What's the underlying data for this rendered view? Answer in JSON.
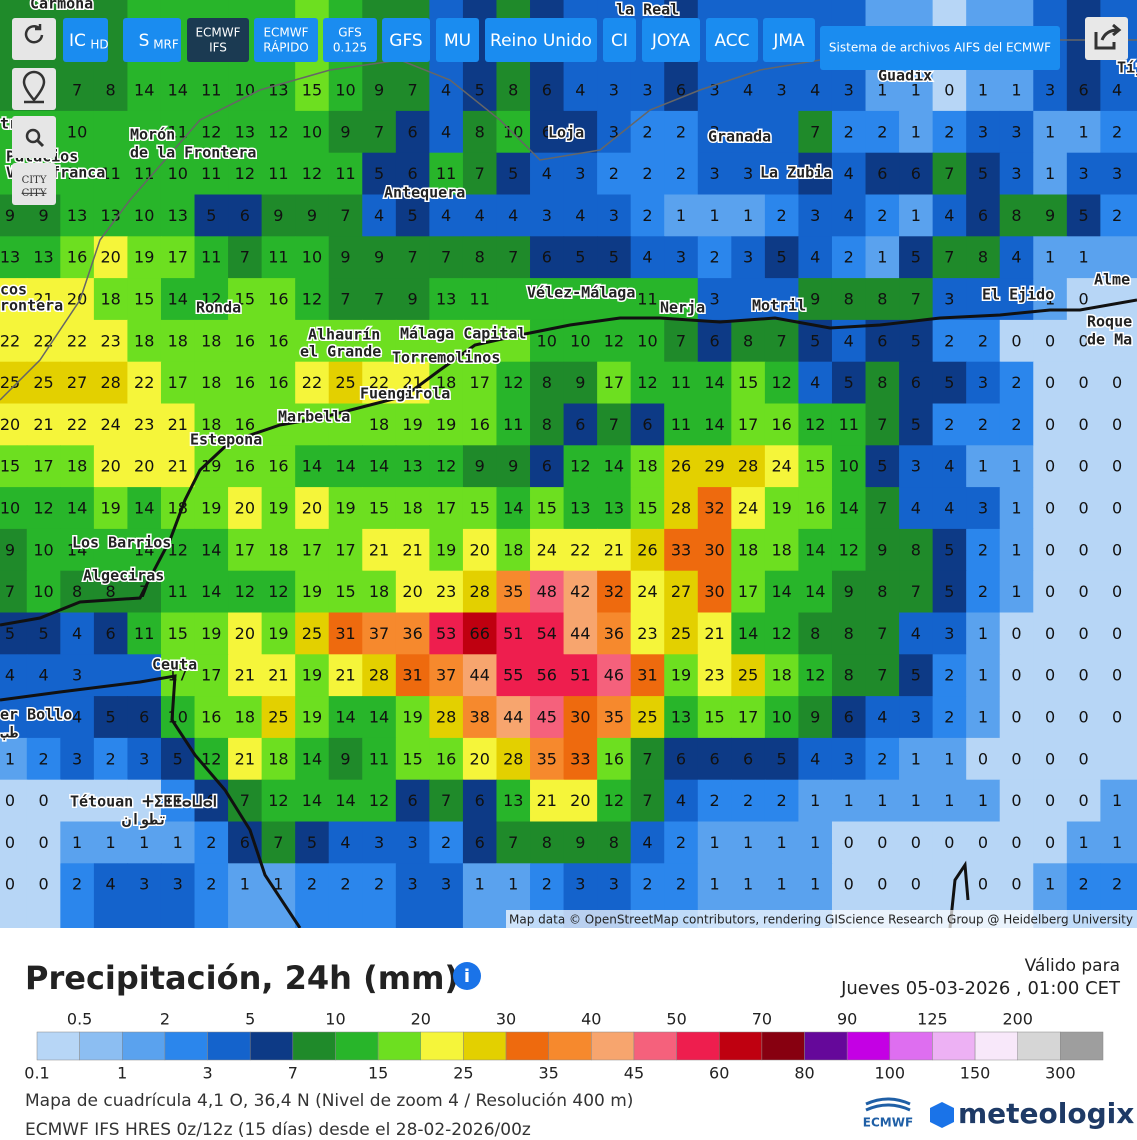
{
  "toolbar": {
    "buttons": [
      {
        "text": "IC",
        "small": "HD"
      },
      {
        "text": "S",
        "small": "MRF"
      },
      {
        "line1": "ECMWF",
        "line2": "IFS"
      },
      {
        "line1": "ECMWF",
        "line2": "RÁPIDO"
      },
      {
        "line1": "GFS",
        "line2": "0.125"
      },
      {
        "text": "GFS"
      },
      {
        "text": "MU"
      },
      {
        "text": "Reino Unido"
      },
      {
        "text": "CI"
      },
      {
        "text": "JOYA"
      },
      {
        "text": "ACC"
      },
      {
        "text": "JMA"
      }
    ],
    "archive": "Sistema de archivos AIFS del ECMWF",
    "city_toggle": {
      "line1": "CITY",
      "line2": "CITY"
    }
  },
  "map": {
    "places": [
      "Morón",
      "de la Frontera",
      "Loja",
      "Granada",
      "La Zubia",
      "Antequera",
      "Guadix",
      "Vélez-Málaga",
      "Nerja",
      "Motril",
      "El Ejido",
      "Alme",
      "Roque",
      "de Ma",
      "Ronda",
      "Alhaurín",
      "el Grande",
      "Málaga Capital",
      "Torremolinos",
      "Fuengirola",
      "Marbella",
      "Estepona",
      "Los Barrios",
      "Algeciras",
      "Ceuta",
      "Tétouan ⵜⵉⵟⵟⴰⵡⴰⵏ",
      "تطوان",
      "Palacios",
      "Villafranca",
      "Carmona",
      "la Real",
      "Tíj",
      "cos",
      "rontera",
      "trera",
      "er Bollo",
      "طب"
    ],
    "attribution": "Map data © OpenStreetMap contributors, rendering GIScience Research Group @ Heidelberg University",
    "grid": [
      [
        null,
        null,
        7,
        8,
        14,
        14,
        11,
        10,
        13,
        15,
        10,
        9,
        7,
        4,
        5,
        8,
        6,
        4,
        3,
        3,
        6,
        3,
        4,
        3,
        4,
        3,
        1,
        1,
        0,
        1,
        1,
        3,
        6,
        4
      ],
      [
        null,
        10,
        10,
        null,
        null,
        11,
        12,
        13,
        12,
        10,
        9,
        7,
        6,
        4,
        8,
        10,
        6,
        null,
        3,
        2,
        2,
        3,
        null,
        null,
        7,
        2,
        2,
        1,
        2,
        3,
        3,
        1,
        1,
        2
      ],
      [
        null,
        null,
        10,
        11,
        11,
        10,
        11,
        12,
        11,
        12,
        11,
        5,
        6,
        11,
        7,
        5,
        4,
        3,
        2,
        2,
        2,
        3,
        3,
        null,
        6,
        4,
        6,
        6,
        7,
        5,
        3,
        1,
        3,
        3
      ],
      [
        9,
        9,
        13,
        13,
        10,
        13,
        5,
        6,
        9,
        9,
        7,
        4,
        5,
        4,
        4,
        4,
        3,
        4,
        3,
        2,
        1,
        1,
        1,
        2,
        3,
        4,
        2,
        1,
        4,
        6,
        8,
        9,
        5,
        2
      ],
      [
        13,
        13,
        16,
        20,
        19,
        17,
        11,
        7,
        11,
        10,
        9,
        9,
        7,
        7,
        8,
        7,
        6,
        5,
        5,
        4,
        3,
        2,
        3,
        5,
        4,
        2,
        1,
        5,
        7,
        8,
        4,
        1,
        1,
        null
      ],
      [
        null,
        21,
        20,
        18,
        15,
        14,
        12,
        15,
        16,
        12,
        7,
        7,
        9,
        13,
        11,
        null,
        null,
        null,
        null,
        11,
        null,
        3,
        null,
        null,
        9,
        8,
        8,
        7,
        3,
        null,
        null,
        1,
        0,
        null
      ],
      [
        22,
        22,
        22,
        23,
        18,
        18,
        18,
        16,
        16,
        null,
        null,
        null,
        null,
        null,
        null,
        null,
        10,
        10,
        12,
        10,
        7,
        6,
        8,
        7,
        5,
        4,
        6,
        5,
        2,
        2,
        0,
        0,
        0,
        null
      ],
      [
        25,
        25,
        27,
        28,
        22,
        17,
        18,
        16,
        16,
        22,
        25,
        22,
        21,
        18,
        17,
        12,
        8,
        9,
        17,
        12,
        11,
        14,
        15,
        12,
        4,
        5,
        8,
        6,
        5,
        3,
        2,
        0,
        0,
        0
      ],
      [
        20,
        21,
        22,
        24,
        23,
        21,
        18,
        16,
        null,
        null,
        null,
        18,
        19,
        19,
        16,
        11,
        8,
        6,
        7,
        6,
        11,
        14,
        17,
        16,
        12,
        11,
        7,
        5,
        2,
        2,
        2,
        0,
        0,
        0
      ],
      [
        15,
        17,
        18,
        20,
        20,
        21,
        19,
        16,
        16,
        14,
        14,
        14,
        13,
        12,
        9,
        9,
        6,
        12,
        14,
        18,
        26,
        29,
        28,
        24,
        15,
        10,
        5,
        3,
        4,
        1,
        1,
        0,
        0,
        0
      ],
      [
        10,
        12,
        14,
        19,
        14,
        18,
        19,
        20,
        19,
        20,
        19,
        15,
        18,
        17,
        15,
        14,
        15,
        13,
        13,
        15,
        28,
        32,
        24,
        19,
        16,
        14,
        7,
        4,
        4,
        3,
        1,
        0,
        0,
        0
      ],
      [
        9,
        10,
        14,
        null,
        14,
        12,
        14,
        17,
        18,
        17,
        17,
        21,
        21,
        19,
        20,
        18,
        24,
        22,
        21,
        26,
        33,
        30,
        18,
        18,
        14,
        12,
        9,
        8,
        5,
        2,
        1,
        0,
        0,
        0
      ],
      [
        7,
        10,
        8,
        8,
        7,
        11,
        14,
        12,
        12,
        19,
        15,
        18,
        20,
        23,
        28,
        35,
        48,
        42,
        32,
        24,
        27,
        30,
        17,
        14,
        14,
        9,
        8,
        7,
        5,
        2,
        1,
        0,
        0,
        0
      ],
      [
        5,
        5,
        4,
        6,
        11,
        15,
        19,
        20,
        19,
        25,
        31,
        37,
        36,
        53,
        66,
        51,
        54,
        44,
        36,
        23,
        25,
        21,
        14,
        12,
        8,
        8,
        7,
        4,
        3,
        1,
        0,
        0,
        0,
        0
      ],
      [
        4,
        4,
        3,
        null,
        null,
        17,
        17,
        21,
        21,
        19,
        21,
        28,
        31,
        37,
        44,
        55,
        56,
        51,
        46,
        31,
        19,
        23,
        25,
        18,
        12,
        8,
        7,
        5,
        2,
        1,
        0,
        0,
        0,
        0
      ],
      [
        null,
        null,
        4,
        5,
        6,
        10,
        16,
        18,
        25,
        19,
        14,
        14,
        19,
        28,
        38,
        44,
        45,
        30,
        35,
        25,
        13,
        15,
        17,
        10,
        9,
        6,
        4,
        3,
        2,
        1,
        0,
        0,
        0,
        0
      ],
      [
        1,
        2,
        3,
        2,
        3,
        5,
        12,
        21,
        18,
        14,
        9,
        11,
        15,
        16,
        20,
        28,
        35,
        33,
        16,
        7,
        6,
        6,
        6,
        5,
        4,
        3,
        2,
        1,
        1,
        0,
        0,
        0,
        0,
        null
      ],
      [
        0,
        0,
        null,
        null,
        null,
        2,
        6,
        7,
        12,
        14,
        14,
        12,
        6,
        7,
        6,
        13,
        21,
        20,
        12,
        7,
        4,
        2,
        2,
        2,
        1,
        1,
        1,
        1,
        1,
        1,
        0,
        0,
        0,
        1
      ],
      [
        0,
        0,
        1,
        1,
        1,
        1,
        2,
        6,
        7,
        5,
        4,
        3,
        3,
        2,
        6,
        7,
        8,
        9,
        8,
        4,
        2,
        1,
        1,
        1,
        1,
        0,
        0,
        0,
        0,
        0,
        0,
        0,
        1,
        1
      ],
      [
        0,
        0,
        2,
        4,
        3,
        3,
        2,
        1,
        1,
        2,
        2,
        2,
        3,
        3,
        1,
        1,
        2,
        3,
        3,
        2,
        2,
        1,
        1,
        1,
        1,
        0,
        0,
        0,
        null,
        0,
        0,
        1,
        2,
        2
      ]
    ]
  },
  "panel": {
    "title": "Precipitación, 24h (mm)",
    "valid_label": "Válido para",
    "valid_time": "Jueves 05-03-2026 , 01:00 CET",
    "legend": {
      "edges": [
        0.1,
        0.5,
        1,
        2,
        3,
        5,
        7,
        10,
        15,
        20,
        25,
        30,
        35,
        40,
        45,
        50,
        60,
        70,
        80,
        90,
        100,
        125,
        150,
        200,
        300
      ],
      "colors": [
        "#b7d6f6",
        "#8cbef2",
        "#5aa2ee",
        "#2b86ec",
        "#1463cc",
        "#0d3a86",
        "#1f8a2a",
        "#28b52a",
        "#6ddf20",
        "#f5f53a",
        "#e3d000",
        "#ee6a0e",
        "#f6892d",
        "#f7a56e",
        "#f5617c",
        "#ee1e4e",
        "#bf0010",
        "#870010",
        "#65089a",
        "#c400e4",
        "#de6ef0",
        "#edb1f4",
        "#f8e8fa",
        "#d6d6d6",
        "#9e9e9e"
      ]
    },
    "grid_info": "Mapa de cuadrícula 4,1 O, 36,4 N (Nivel de zoom 4 / Resolución 400 m)",
    "model_info": "ECMWF IFS HRES 0z/12z (15 días) desde el 28-02-2026/00z",
    "logo_ecmwf": "ECMWF",
    "logo_meteologix": "meteologix"
  }
}
